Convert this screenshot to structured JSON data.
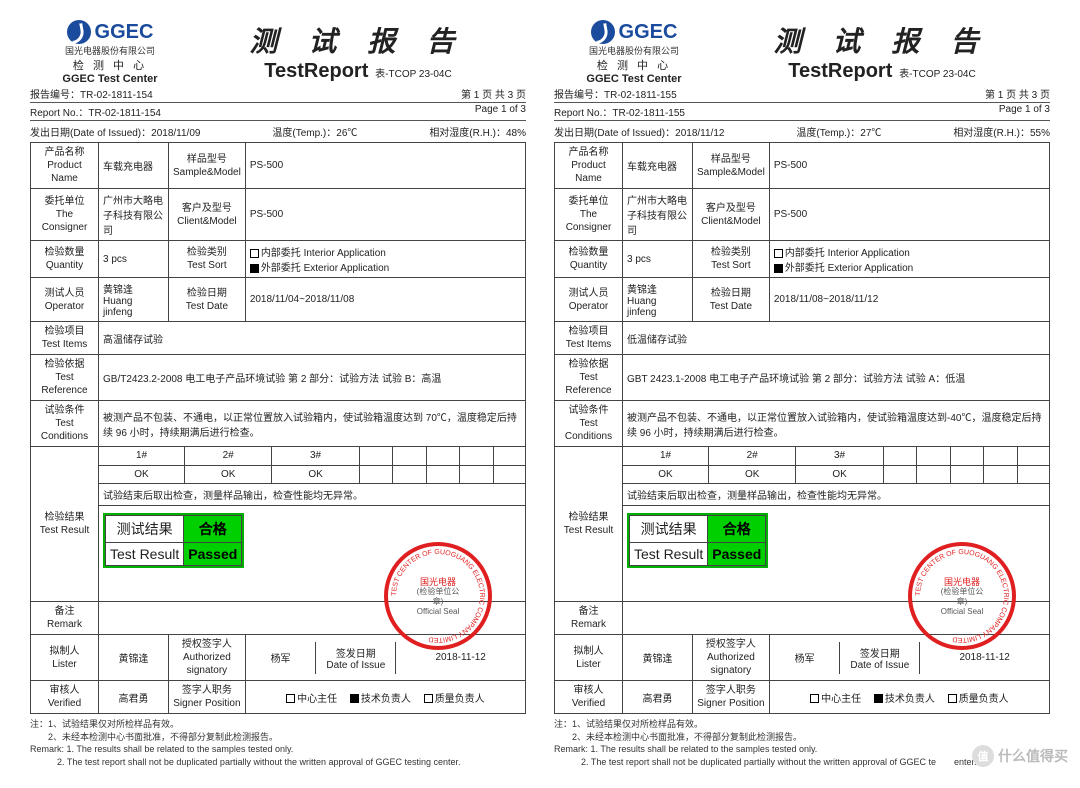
{
  "common": {
    "logo_text": "GGEC",
    "logo_cn1": "国光电器股份有限公司",
    "logo_cn2": "检 测 中 心",
    "logo_en": "GGEC Test Center",
    "title_cn": "测 试 报 告",
    "title_en": "TestReport",
    "title_suffix": "表-TCOP 23-04C",
    "report_num_lbl_cn": "报告编号：",
    "report_num_lbl_en": "Report No.：",
    "page_cn": "第 1 页  共 3 页",
    "page_en": "Page 1 of 3",
    "issue_date_lbl": "发出日期(Date of Issued)：",
    "temp_lbl": "温度(Temp.)：",
    "rh_lbl": "相对湿度(R.H.)：",
    "product_lbl": "产品名称<br>Product Name",
    "sample_lbl": "样品型号<br>Sample&Model",
    "consigner_lbl": "委托单位<br>The Consigner",
    "client_lbl": "客户及型号<br>Client&Model",
    "qty_lbl": "检验数量<br>Quantity",
    "sort_lbl": "检验类别<br>Test Sort",
    "operator_lbl": "测试人员<br>Operator",
    "testdate_lbl": "检验日期<br>Test Date",
    "items_lbl": "检验项目<br>Test Items",
    "ref_lbl": "检验依据<br>Test Reference",
    "cond_lbl": "试验条件<br>Test Conditions",
    "result_lbl": "检验结果<br>Test Result",
    "remark_lbl": "备注<br>Remark",
    "lister_lbl": "拟制人<br>Lister",
    "auth_lbl": "授权签字人<br>Authorized signatory",
    "issuedate_lbl": "签发日期<br>Date of Issue",
    "verified_lbl": "审核人<br>Verified",
    "signerpos_lbl": "签字人职务<br>Signer Position",
    "chk_interior": "内部委托 Interior Application",
    "chk_exterior": "外部委托 Exterior Application",
    "chk_center": "中心主任",
    "chk_tech": "技术负责人",
    "chk_quality": "质量负责人",
    "sample_header": [
      "1#",
      "2#",
      "3#"
    ],
    "sample_ok": [
      "OK",
      "OK",
      "OK"
    ],
    "resultbox_cn": "测试结果",
    "resultbox_pass_cn": "合格",
    "resultbox_en": "Test Result",
    "resultbox_pass_en": "Passed",
    "seal_text_top": "国光电器",
    "seal_text_mid": "(检验单位公章)",
    "seal_text_bot": "Official Seal",
    "seal_arc1": "TEST CENTER OF GUOGUANG ELECTRIC COMPANY LIMITED",
    "note1": "注：1、试验结果仅对所检样品有效。",
    "note2": "　　2、未经本检测中心书面批准，不得部分复制此检测报告。",
    "note3": "Remark: 1. The results shall be related to the samples tested only.",
    "watermark_text": "什么值得买",
    "watermark_icon": "值"
  },
  "report1": {
    "report_no": "TR-02-1811-154",
    "issued": "2018/11/09",
    "temp": "26℃",
    "rh": "48%",
    "product": "车载充电器",
    "sample_model": "PS-500",
    "consigner": "广州市大略电子科技有限公司",
    "client_model": "PS-500",
    "qty": "3 pcs",
    "operator_cn": "黄锦逢",
    "operator_en": "Huang jinfeng",
    "test_date": "2018/11/04~2018/11/08",
    "test_items": "高温储存试验",
    "test_ref": "GB/T2423.2-2008  电工电子产品环境试验  第 2 部分：试验方法  试验 B：高温",
    "test_cond": "被测产品不包装、不通电，以正常位置放入试验箱内，使试验箱温度达到 70℃，温度稳定后持续 96 小时，持续期满后进行检查。",
    "result_summary": "试验结束后取出检查，测量样品输出，检查性能均无异常。",
    "lister": "黄锦逢",
    "auth": "杨军",
    "issue_date": "2018-11-12",
    "verified": "高君勇",
    "note4": "　　　2. The test report shall not be duplicated partially without the written approval of GGEC testing center."
  },
  "report2": {
    "report_no": "TR-02-1811-155",
    "issued": "2018/11/12",
    "temp": "27℃",
    "rh": "55%",
    "product": "车载充电器",
    "sample_model": "PS-500",
    "consigner": "广州市大略电子科技有限公司",
    "client_model": "PS-500",
    "qty": "3 pcs",
    "operator_cn": "黄锦逢",
    "operator_en": "Huang jinfeng",
    "test_date": "2018/11/08~2018/11/12",
    "test_items": "低温储存试验",
    "test_ref": "GBT 2423.1-2008  电工电子产品环境试验  第 2 部分：试验方法  试验 A：低温",
    "test_cond": "被测产品不包装、不通电，以正常位置放入试验箱内，使试验箱温度达到-40℃，温度稳定后持续 96 小时，持续期满后进行检查。",
    "result_summary": "试验结束后取出检查，测量样品输出，检查性能均无异常。",
    "lister": "黄锦逢",
    "auth": "杨军",
    "issue_date": "2018-11-12",
    "verified": "高君勇",
    "note4": "　　　2. The test report shall not be duplicated partially without the written approval of GGEC te　　enter."
  }
}
